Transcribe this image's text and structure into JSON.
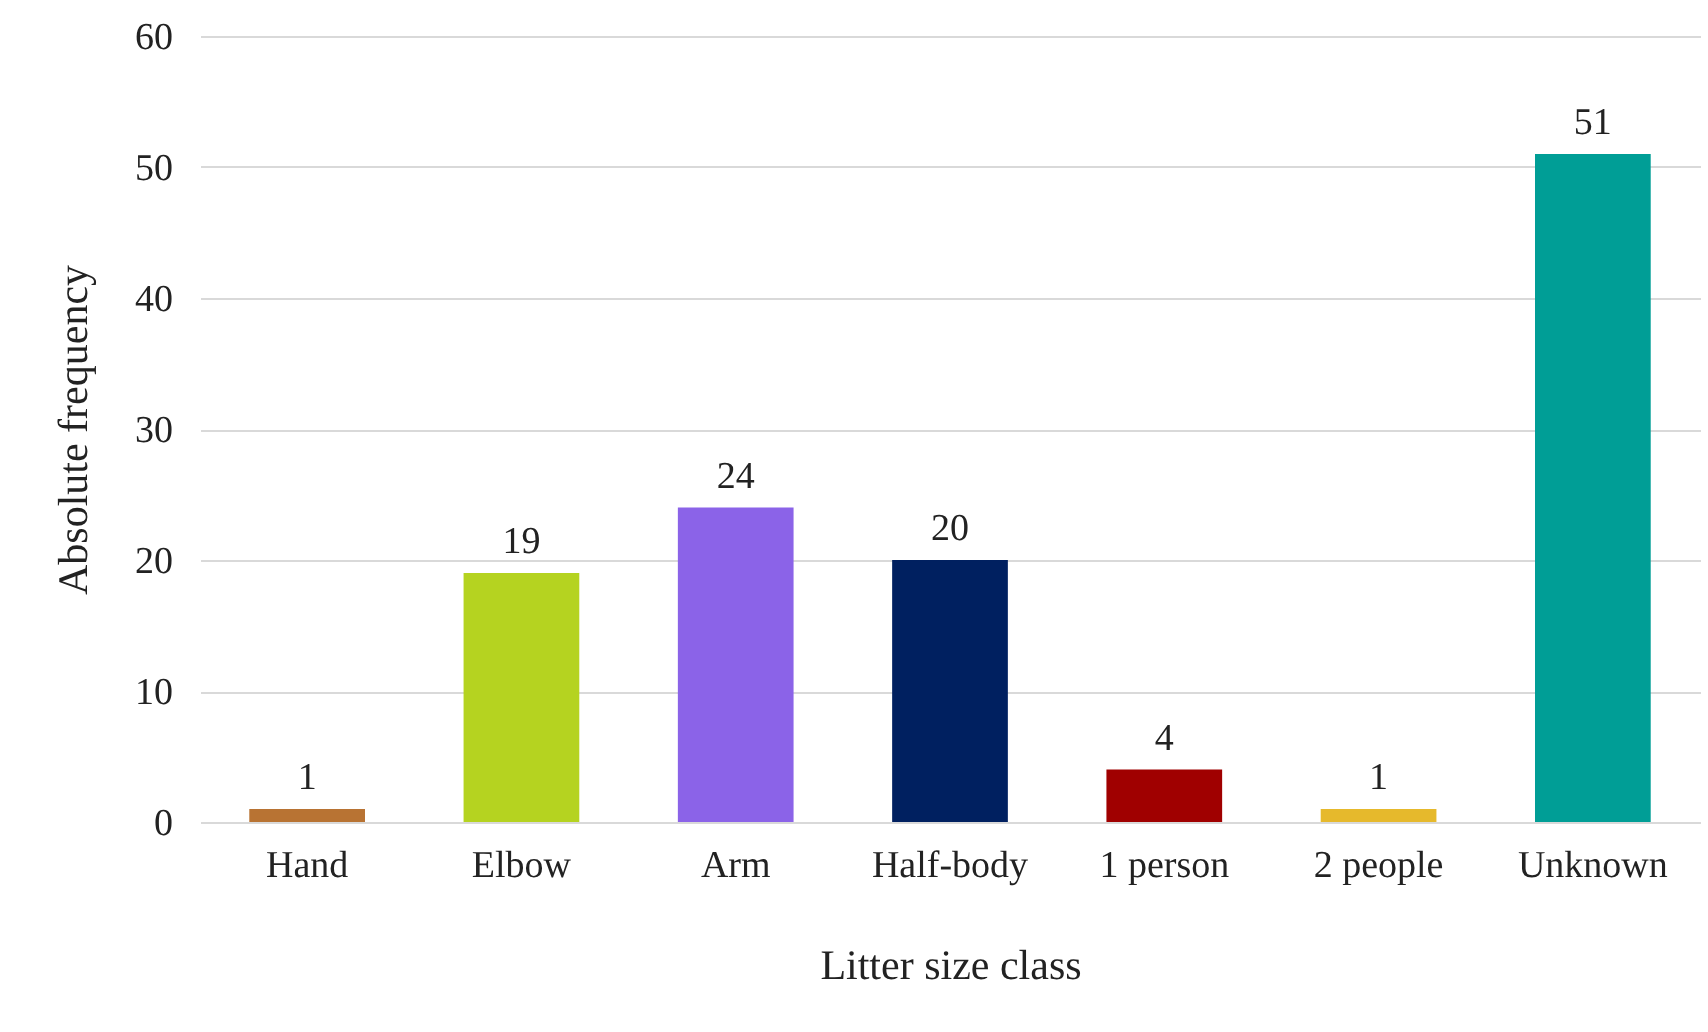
{
  "chart_data": {
    "type": "bar",
    "xlabel": "Litter size class",
    "ylabel": "Absolute frequency",
    "categories": [
      "Hand",
      "Elbow",
      "Arm",
      "Half-body",
      "1 person",
      "2 people",
      "Unknown"
    ],
    "values": [
      1,
      19,
      24,
      20,
      4,
      1,
      51
    ],
    "colors": [
      "#b87333",
      "#b5d320",
      "#8b63e8",
      "#002060",
      "#a00000",
      "#e6b92c",
      "#009e96"
    ],
    "ylim": [
      0,
      60
    ],
    "yticks": [
      0,
      10,
      20,
      30,
      40,
      50,
      60
    ],
    "grid": "y",
    "data_labels": true
  }
}
